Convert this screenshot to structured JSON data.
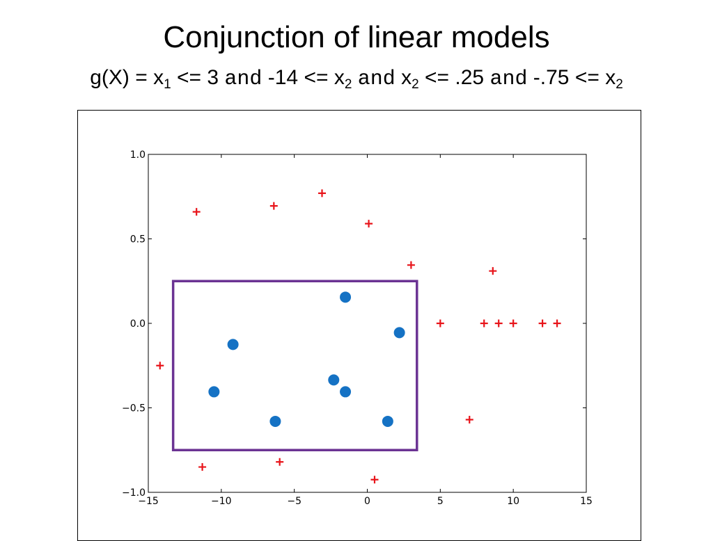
{
  "slide": {
    "title": "Conjunction of linear models",
    "subtitle": {
      "prefix": "g(X) = x",
      "c1_sub": "1",
      "c1_rest": " <= 3 ",
      "and1": "and",
      "c2_pre": " -14 <= x",
      "c2_sub": "2",
      "and2": "and",
      "c3_pre": " x",
      "c3_sub": "2",
      "c3_rest": " <= .25 ",
      "and3": "and",
      "c4_pre": " -.75 <= x",
      "c4_sub": "2"
    }
  },
  "chart_data": {
    "type": "scatter",
    "xlim": [
      -15,
      15
    ],
    "ylim": [
      -1.0,
      1.0
    ],
    "x_ticks": [
      -15,
      -10,
      -5,
      0,
      5,
      10,
      15
    ],
    "x_tick_labels": [
      "−15",
      "−10",
      "−5",
      "0",
      "5",
      "10",
      "15"
    ],
    "y_ticks": [
      -1.0,
      -0.5,
      0.0,
      0.5,
      1.0
    ],
    "y_tick_labels": [
      "−1.0",
      "−0.5",
      "0.0",
      "0.5",
      "1.0"
    ],
    "grid": false,
    "series": [
      {
        "marker": "plus",
        "color": "#e8141a",
        "points": [
          [
            -11.7,
            0.66
          ],
          [
            -6.4,
            0.695
          ],
          [
            -3.1,
            0.77
          ],
          [
            0.1,
            0.59
          ],
          [
            3.0,
            0.345
          ],
          [
            8.6,
            0.31
          ],
          [
            5.0,
            0.0
          ],
          [
            8.0,
            0.0
          ],
          [
            9.0,
            0.0
          ],
          [
            10.0,
            0.0
          ],
          [
            12.0,
            0.0
          ],
          [
            13.0,
            0.0
          ],
          [
            -14.2,
            -0.25
          ],
          [
            7.0,
            -0.57
          ],
          [
            -11.3,
            -0.85
          ],
          [
            -6.0,
            -0.82
          ],
          [
            0.5,
            -0.925
          ]
        ]
      },
      {
        "marker": "circle",
        "color": "#1572c4",
        "points": [
          [
            -1.5,
            0.155
          ],
          [
            2.2,
            -0.055
          ],
          [
            -9.2,
            -0.125
          ],
          [
            -2.3,
            -0.335
          ],
          [
            -1.5,
            -0.405
          ],
          [
            -10.5,
            -0.405
          ],
          [
            -6.3,
            -0.58
          ],
          [
            1.4,
            -0.58
          ]
        ]
      }
    ],
    "region": {
      "shape": "rectangle",
      "color": "#6b3393",
      "x_range": [
        -13.3,
        3.4
      ],
      "y_range": [
        -0.75,
        0.25
      ]
    }
  }
}
